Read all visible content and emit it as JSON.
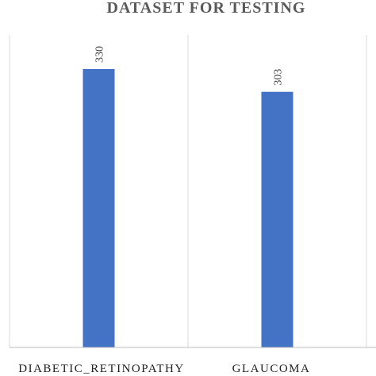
{
  "chart_data": {
    "type": "bar",
    "title": "DATASET FOR TESTING",
    "xlabel": "",
    "ylabel": "",
    "categories": [
      "DIABETIC_RETINOPATHY",
      "GLAUCOMA"
    ],
    "values": [
      330,
      303
    ],
    "ylim": [
      0,
      330
    ],
    "grid": true,
    "data_labels": [
      "330",
      "303"
    ],
    "colors": {
      "bar": "#4472C4",
      "grid": "#d9d9d9",
      "axis": "#bfbfbf"
    }
  }
}
